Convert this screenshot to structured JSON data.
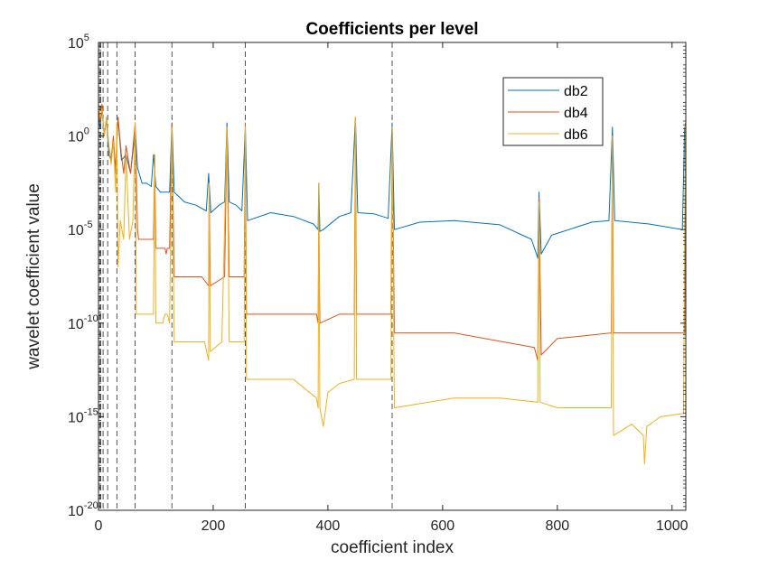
{
  "chart_data": {
    "type": "line",
    "title": "Coefficients per level",
    "xlabel": "coefficient index",
    "ylabel": "wavelet coefficient value",
    "xlim": [
      0,
      1024
    ],
    "ylim": [
      1e-20,
      100000
    ],
    "yscale": "log",
    "x_ticks": [
      0,
      200,
      400,
      600,
      800,
      1000
    ],
    "x_tick_labels": [
      "0",
      "200",
      "400",
      "600",
      "800",
      "1000"
    ],
    "y_ticks": [
      -20,
      -15,
      -10,
      -5,
      0,
      5
    ],
    "y_tick_labels": [
      {
        "base": "10",
        "exp": "-20"
      },
      {
        "base": "10",
        "exp": "-15"
      },
      {
        "base": "10",
        "exp": "-10"
      },
      {
        "base": "10",
        "exp": "-5"
      },
      {
        "base": "10",
        "exp": "0"
      },
      {
        "base": "10",
        "exp": "5"
      }
    ],
    "level_boundaries": [
      2,
      4,
      8,
      16,
      32,
      64,
      128,
      256,
      512
    ],
    "grid": false,
    "legend_position": "top-right",
    "series": [
      {
        "name": "db2",
        "color": "#0072BD",
        "points": [
          [
            0,
            10
          ],
          [
            3,
            3
          ],
          [
            6,
            30
          ],
          [
            10,
            1
          ],
          [
            14,
            8
          ],
          [
            18,
            0.1
          ],
          [
            22,
            0.05
          ],
          [
            26,
            0.5
          ],
          [
            30,
            0.02
          ],
          [
            34,
            10
          ],
          [
            40,
            0.05
          ],
          [
            48,
            0.1
          ],
          [
            56,
            0.01
          ],
          [
            62,
            0.5
          ],
          [
            64,
            3
          ],
          [
            68,
            0.02
          ],
          [
            76,
            0.003
          ],
          [
            84,
            0.003
          ],
          [
            92,
            0.002
          ],
          [
            96,
            0.1
          ],
          [
            100,
            0.002
          ],
          [
            108,
            0.001
          ],
          [
            112,
            0.001
          ],
          [
            116,
            0.001
          ],
          [
            118,
            0.001
          ],
          [
            120,
            0.001
          ],
          [
            124,
            0.001
          ],
          [
            128,
            5
          ],
          [
            132,
            0.001
          ],
          [
            150,
            0.0003
          ],
          [
            170,
            0.0002
          ],
          [
            188,
            0.0001
          ],
          [
            192,
            0.01
          ],
          [
            196,
            8e-05
          ],
          [
            210,
            0.0002
          ],
          [
            220,
            0.0003
          ],
          [
            224,
            5
          ],
          [
            228,
            0.0003
          ],
          [
            240,
            0.0002
          ],
          [
            250,
            0.0001
          ],
          [
            256,
            3
          ],
          [
            260,
            3e-05
          ],
          [
            300,
            8e-05
          ],
          [
            340,
            5e-05
          ],
          [
            375,
            2e-05
          ],
          [
            383,
            1e-05
          ],
          [
            384,
            0.003
          ],
          [
            386,
            8e-06
          ],
          [
            392,
            1e-05
          ],
          [
            420,
            5e-05
          ],
          [
            440,
            8e-05
          ],
          [
            448,
            10
          ],
          [
            452,
            8e-05
          ],
          [
            480,
            7e-05
          ],
          [
            505,
            4e-05
          ],
          [
            512,
            5
          ],
          [
            516,
            1e-05
          ],
          [
            560,
            2.5e-05
          ],
          [
            620,
            3e-05
          ],
          [
            700,
            1.8e-05
          ],
          [
            755,
            3e-06
          ],
          [
            766,
            3e-07
          ],
          [
            768,
            0.001
          ],
          [
            772,
            5e-07
          ],
          [
            790,
            5e-06
          ],
          [
            860,
            2.5e-05
          ],
          [
            890,
            3e-05
          ],
          [
            896,
            3
          ],
          [
            900,
            3e-05
          ],
          [
            960,
            2e-05
          ],
          [
            1018,
            1e-05
          ],
          [
            1022,
            3
          ]
        ]
      },
      {
        "name": "db4",
        "color": "#D95319",
        "points": [
          [
            0,
            30
          ],
          [
            3,
            5
          ],
          [
            6,
            50
          ],
          [
            10,
            1
          ],
          [
            14,
            10
          ],
          [
            18,
            0.3
          ],
          [
            22,
            0.05
          ],
          [
            26,
            1
          ],
          [
            30,
            0.01
          ],
          [
            34,
            10
          ],
          [
            40,
            0.1
          ],
          [
            44,
            0.01
          ],
          [
            48,
            0.3
          ],
          [
            56,
            0.01
          ],
          [
            64,
            5
          ],
          [
            68,
            1e-05
          ],
          [
            70,
            3e-06
          ],
          [
            96,
            3e-06
          ],
          [
            98,
            0.1
          ],
          [
            100,
            1e-06
          ],
          [
            112,
            1e-06
          ],
          [
            116,
            1e-06
          ],
          [
            118,
            5e-07
          ],
          [
            120,
            1e-06
          ],
          [
            124,
            1e-06
          ],
          [
            128,
            5
          ],
          [
            132,
            3e-08
          ],
          [
            180,
            3e-08
          ],
          [
            192,
            1e-08
          ],
          [
            193,
            0.003
          ],
          [
            195,
            1e-08
          ],
          [
            220,
            3e-08
          ],
          [
            224,
            3
          ],
          [
            228,
            3e-08
          ],
          [
            254,
            3e-08
          ],
          [
            256,
            5
          ],
          [
            258,
            3e-10
          ],
          [
            300,
            3e-10
          ],
          [
            340,
            3e-10
          ],
          [
            380,
            3e-10
          ],
          [
            383,
            1e-10
          ],
          [
            384,
            0.0003
          ],
          [
            386,
            1e-10
          ],
          [
            420,
            3e-10
          ],
          [
            446,
            3e-10
          ],
          [
            448,
            10
          ],
          [
            450,
            3e-10
          ],
          [
            510,
            3e-10
          ],
          [
            512,
            3
          ],
          [
            516,
            3e-11
          ],
          [
            620,
            3e-11
          ],
          [
            760,
            5e-12
          ],
          [
            766,
            1e-12
          ],
          [
            768,
            0.0005
          ],
          [
            772,
            2e-12
          ],
          [
            800,
            1.5e-11
          ],
          [
            894,
            3e-11
          ],
          [
            896,
            1
          ],
          [
            898,
            3e-11
          ],
          [
            1022,
            3e-11
          ],
          [
            1023,
            5
          ]
        ]
      },
      {
        "name": "db6",
        "color": "#EDB120",
        "points": [
          [
            0,
            50
          ],
          [
            3,
            10
          ],
          [
            6,
            30
          ],
          [
            10,
            1
          ],
          [
            14,
            10
          ],
          [
            18,
            0.3
          ],
          [
            22,
            0.03
          ],
          [
            26,
            0.5
          ],
          [
            30,
            0.001
          ],
          [
            32,
            5
          ],
          [
            34,
            1e-07
          ],
          [
            38,
            3e-05
          ],
          [
            44,
            3e-06
          ],
          [
            48,
            0.1
          ],
          [
            54,
            3e-06
          ],
          [
            60,
            3e-05
          ],
          [
            64,
            5
          ],
          [
            66,
            3e-10
          ],
          [
            70,
            3e-10
          ],
          [
            96,
            3e-10
          ],
          [
            98,
            0.1
          ],
          [
            100,
            1e-10
          ],
          [
            112,
            1e-10
          ],
          [
            116,
            3e-10
          ],
          [
            120,
            3e-10
          ],
          [
            124,
            1e-10
          ],
          [
            128,
            3
          ],
          [
            132,
            1e-11
          ],
          [
            185,
            1e-11
          ],
          [
            192,
            1e-12
          ],
          [
            193,
            0.003
          ],
          [
            195,
            3e-12
          ],
          [
            215,
            1e-11
          ],
          [
            224,
            3
          ],
          [
            228,
            1e-11
          ],
          [
            254,
            1e-11
          ],
          [
            256,
            3
          ],
          [
            258,
            1e-13
          ],
          [
            300,
            1e-13
          ],
          [
            340,
            1e-13
          ],
          [
            380,
            1e-14
          ],
          [
            383,
            3e-15
          ],
          [
            384,
            0.003
          ],
          [
            386,
            3e-15
          ],
          [
            392,
            3e-16
          ],
          [
            400,
            2e-14
          ],
          [
            420,
            6e-14
          ],
          [
            446,
            1e-13
          ],
          [
            448,
            10
          ],
          [
            450,
            1e-13
          ],
          [
            510,
            1e-13
          ],
          [
            512,
            3
          ],
          [
            516,
            3e-15
          ],
          [
            620,
            1e-14
          ],
          [
            700,
            1e-14
          ],
          [
            766,
            6e-15
          ],
          [
            768,
            0.0003
          ],
          [
            770,
            6e-15
          ],
          [
            800,
            3e-15
          ],
          [
            894,
            3e-15
          ],
          [
            896,
            1
          ],
          [
            898,
            1e-16
          ],
          [
            930,
            4e-16
          ],
          [
            950,
            1e-16
          ],
          [
            952,
            3e-18
          ],
          [
            956,
            3e-16
          ],
          [
            980,
            1e-15
          ],
          [
            1020,
            1.5e-15
          ],
          [
            1023,
            5
          ]
        ]
      }
    ]
  }
}
